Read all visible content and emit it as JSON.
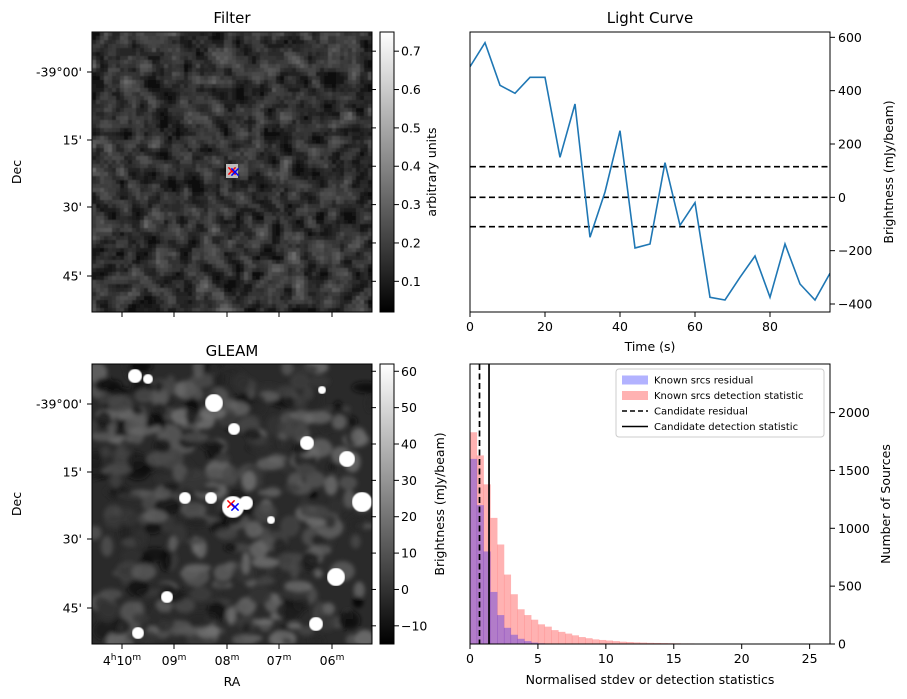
{
  "chart_data": [
    {
      "type": "heatmap",
      "title": "Filter",
      "xlabel": "",
      "ylabel": "Dec",
      "y_tick_labels": [
        "-39°00'",
        "15'",
        "30'",
        "45'"
      ],
      "colorbar": {
        "label": "arbitrary units",
        "ticks": [
          0.1,
          0.2,
          0.3,
          0.4,
          0.5,
          0.6,
          0.7
        ],
        "tick_labels": [
          "0.1",
          "0.2",
          "0.3",
          "0.4",
          "0.5",
          "0.6",
          "0.7"
        ],
        "range": [
          0.02,
          0.75
        ]
      },
      "markers": [
        {
          "name": "candidate-red",
          "symbol": "x",
          "color": "#ff0000"
        },
        {
          "name": "candidate-blue",
          "symbol": "x",
          "color": "#0000ff"
        }
      ]
    },
    {
      "type": "line",
      "title": "Light Curve",
      "xlabel": "Time (s)",
      "ylabel": "Brightness (mJy/beam)",
      "xlim": [
        0,
        96
      ],
      "ylim": [
        -430,
        620
      ],
      "x_ticks": [
        0,
        20,
        40,
        60,
        80
      ],
      "x_tick_labels": [
        "0",
        "20",
        "40",
        "60",
        "80"
      ],
      "y_ticks": [
        -400,
        -200,
        0,
        200,
        400,
        600
      ],
      "y_tick_labels": [
        "−400",
        "−200",
        "0",
        "200",
        "400",
        "600"
      ],
      "series": [
        {
          "name": "light-curve",
          "color": "#1f77b4",
          "x": [
            0,
            4,
            8,
            12,
            16,
            20,
            24,
            28,
            32,
            36,
            40,
            44,
            48,
            52,
            56,
            60,
            64,
            68,
            72,
            76,
            80,
            84,
            88,
            92,
            96
          ],
          "values": [
            490,
            580,
            420,
            390,
            450,
            450,
            150,
            350,
            -150,
            20,
            250,
            -190,
            -175,
            130,
            -105,
            -20,
            -375,
            -385,
            -300,
            -220,
            -375,
            -175,
            -325,
            -385,
            -285
          ]
        }
      ],
      "hlines": [
        {
          "y": 115,
          "style": "dashed",
          "color": "#000000"
        },
        {
          "y": 0,
          "style": "dashed",
          "color": "#000000"
        },
        {
          "y": -110,
          "style": "dashed",
          "color": "#000000"
        }
      ]
    },
    {
      "type": "heatmap",
      "title": "GLEAM",
      "xlabel": "RA",
      "ylabel": "Dec",
      "x_tick_labels": [
        {
          "base": "4",
          "sup1": "h",
          "mid": "10",
          "sup2": "m"
        },
        {
          "base": "",
          "sup1": "",
          "mid": "09",
          "sup2": "m"
        },
        {
          "base": "",
          "sup1": "",
          "mid": "08",
          "sup2": "m"
        },
        {
          "base": "",
          "sup1": "",
          "mid": "07",
          "sup2": "m"
        },
        {
          "base": "",
          "sup1": "",
          "mid": "06",
          "sup2": "m"
        }
      ],
      "y_tick_labels": [
        "-39°00'",
        "15'",
        "30'",
        "45'"
      ],
      "colorbar": {
        "label": "Brightness (mJy/beam)",
        "ticks": [
          -10,
          0,
          10,
          20,
          30,
          40,
          50,
          60
        ],
        "tick_labels": [
          "−10",
          "0",
          "10",
          "20",
          "30",
          "40",
          "50",
          "60"
        ],
        "range": [
          -15,
          62
        ]
      },
      "markers": [
        {
          "name": "candidate-red",
          "symbol": "x",
          "color": "#ff0000"
        },
        {
          "name": "candidate-blue",
          "symbol": "x",
          "color": "#0000ff"
        }
      ]
    },
    {
      "type": "bar",
      "title": "",
      "xlabel": "Normalised stdev or detection statistics",
      "ylabel": "Number of Sources",
      "xlim": [
        0,
        26.5
      ],
      "ylim": [
        0,
        2420
      ],
      "x_ticks": [
        0,
        5,
        10,
        15,
        20,
        25
      ],
      "x_tick_labels": [
        "0",
        "5",
        "10",
        "15",
        "20",
        "25"
      ],
      "y_ticks": [
        0,
        500,
        1000,
        1500,
        2000
      ],
      "y_tick_labels": [
        "0",
        "500",
        "1000",
        "1500",
        "2000"
      ],
      "bin_width": 0.5,
      "series": [
        {
          "name": "Known srcs residual",
          "color": "#0000ff",
          "opacity": 0.3,
          "bin_start": 0,
          "values": [
            1600,
            1200,
            800,
            450,
            250,
            140,
            80,
            45,
            25,
            12,
            6,
            3
          ]
        },
        {
          "name": "Known srcs detection statistic",
          "color": "#ff0000",
          "opacity": 0.3,
          "bin_start": 0,
          "values": [
            1830,
            1630,
            1380,
            1090,
            860,
            600,
            430,
            300,
            250,
            210,
            170,
            150,
            120,
            105,
            90,
            75,
            60,
            50,
            40,
            35,
            30,
            25,
            20,
            17,
            14,
            12,
            10,
            9,
            8,
            7,
            6,
            5,
            5,
            4,
            4,
            3,
            3,
            3,
            2,
            2,
            2,
            2,
            2,
            2,
            2,
            2,
            2,
            2,
            2,
            2,
            2,
            2,
            2
          ]
        }
      ],
      "vlines": [
        {
          "name": "Candidate residual",
          "x": 0.7,
          "style": "dashed",
          "color": "#000000"
        },
        {
          "name": "Candidate detection statistic",
          "x": 1.4,
          "style": "solid",
          "color": "#000000"
        }
      ],
      "secondary_axis_label": "Brightness (mJy/beam)",
      "legend": {
        "position": "top-right",
        "entries": [
          {
            "label": "Known srcs residual",
            "kind": "patch",
            "color": "#0000ff",
            "opacity": 0.3
          },
          {
            "label": "Known srcs detection statistic",
            "kind": "patch",
            "color": "#ff0000",
            "opacity": 0.3
          },
          {
            "label": "Candidate residual",
            "kind": "line",
            "style": "dashed",
            "color": "#000000"
          },
          {
            "label": "Candidate detection statistic",
            "kind": "line",
            "style": "solid",
            "color": "#000000"
          }
        ]
      }
    }
  ]
}
